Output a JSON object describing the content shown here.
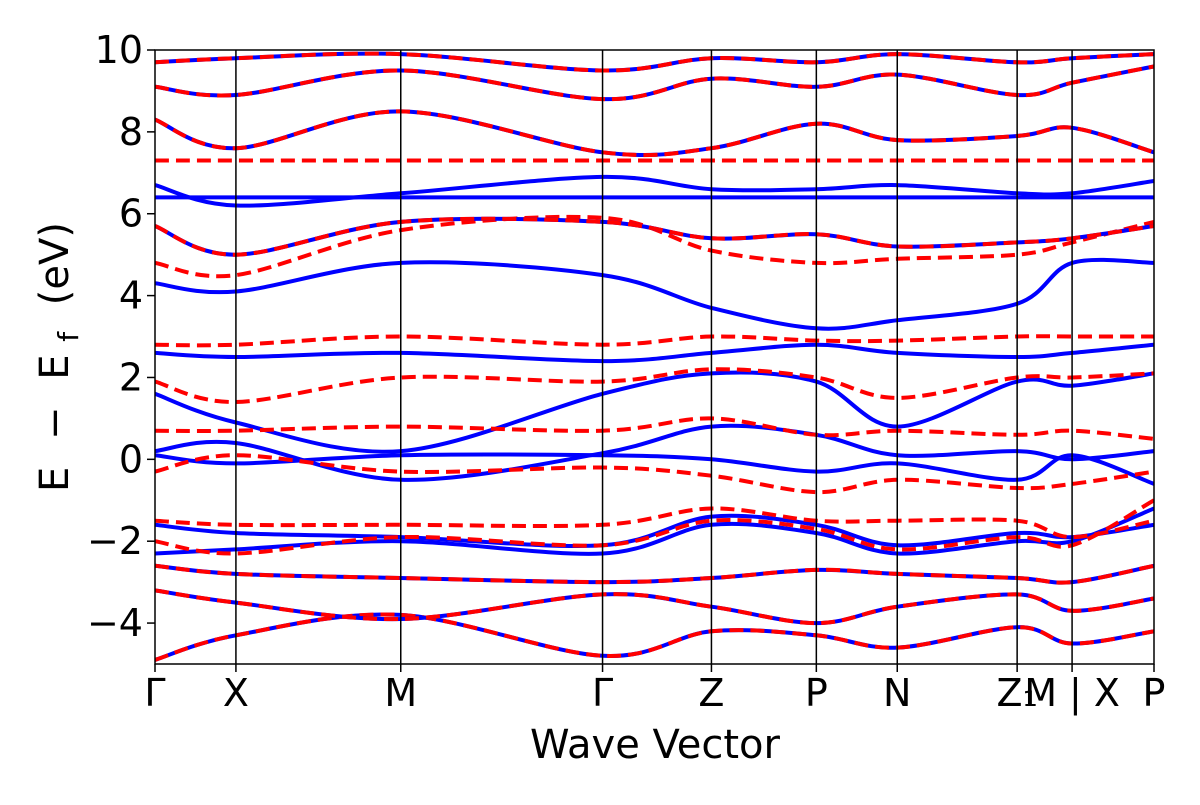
{
  "chart_data": {
    "type": "line",
    "title": "",
    "xlabel": "Wave Vector",
    "ylabel_parts": {
      "E": "E",
      "minus": "−",
      "Ef": "E",
      "sub": "f",
      "unit": "(eV)"
    },
    "ylim": [
      -5,
      10
    ],
    "y_ticks": [
      10,
      8,
      6,
      4,
      2,
      0,
      -2,
      -4
    ],
    "y_tick_labels": [
      "10",
      "8",
      "6",
      "4",
      "2",
      "0",
      "−2",
      "−4"
    ],
    "x_range": [
      0,
      1
    ],
    "high_symmetry_points": [
      {
        "label": "Γ",
        "x": 0.0
      },
      {
        "label": "X",
        "x": 0.081
      },
      {
        "label": "M",
        "x": 0.246
      },
      {
        "label": "Γ",
        "x": 0.448
      },
      {
        "label": "Z",
        "x": 0.557
      },
      {
        "label": "P",
        "x": 0.662
      },
      {
        "label": "N",
        "x": 0.743
      },
      {
        "label": "Z₁",
        "x": 0.863
      },
      {
        "label": "M | X",
        "x": 0.918
      },
      {
        "label": "P",
        "x": 1.0
      }
    ],
    "grid": false,
    "series": [
      {
        "style": "solid",
        "color": "#0000ff",
        "bands": [
          [
            [
              0.0,
              -2.3
            ],
            [
              0.081,
              -2.2
            ],
            [
              0.246,
              -2.0
            ],
            [
              0.448,
              -2.3
            ],
            [
              0.557,
              -1.6
            ],
            [
              0.662,
              -1.8
            ],
            [
              0.743,
              -2.3
            ],
            [
              0.863,
              -2.0
            ],
            [
              0.918,
              -2.0
            ],
            [
              1.0,
              -1.2
            ]
          ],
          [
            [
              0.0,
              -1.6
            ],
            [
              0.081,
              -1.8
            ],
            [
              0.246,
              -1.9
            ],
            [
              0.448,
              -2.1
            ],
            [
              0.557,
              -1.4
            ],
            [
              0.662,
              -1.6
            ],
            [
              0.743,
              -2.1
            ],
            [
              0.863,
              -1.8
            ],
            [
              0.918,
              -1.9
            ],
            [
              1.0,
              -1.6
            ]
          ],
          [
            [
              0.0,
              0.1
            ],
            [
              0.081,
              -0.1
            ],
            [
              0.246,
              0.1
            ],
            [
              0.448,
              0.1
            ],
            [
              0.557,
              0.0
            ],
            [
              0.662,
              -0.3
            ],
            [
              0.743,
              -0.1
            ],
            [
              0.863,
              -0.5
            ],
            [
              0.918,
              0.1
            ],
            [
              1.0,
              -0.6
            ]
          ],
          [
            [
              0.0,
              0.2
            ],
            [
              0.081,
              0.4
            ],
            [
              0.246,
              -0.5
            ],
            [
              0.448,
              0.15
            ],
            [
              0.557,
              0.8
            ],
            [
              0.662,
              0.6
            ],
            [
              0.743,
              0.1
            ],
            [
              0.863,
              0.2
            ],
            [
              0.918,
              0.0
            ],
            [
              1.0,
              0.2
            ]
          ],
          [
            [
              0.0,
              1.6
            ],
            [
              0.081,
              0.9
            ],
            [
              0.246,
              0.2
            ],
            [
              0.448,
              1.6
            ],
            [
              0.557,
              2.1
            ],
            [
              0.662,
              1.9
            ],
            [
              0.743,
              0.8
            ],
            [
              0.863,
              1.9
            ],
            [
              0.918,
              1.8
            ],
            [
              1.0,
              2.1
            ]
          ],
          [
            [
              0.0,
              2.6
            ],
            [
              0.081,
              2.5
            ],
            [
              0.246,
              2.6
            ],
            [
              0.448,
              2.4
            ],
            [
              0.557,
              2.6
            ],
            [
              0.662,
              2.8
            ],
            [
              0.743,
              2.6
            ],
            [
              0.863,
              2.5
            ],
            [
              0.918,
              2.6
            ],
            [
              1.0,
              2.8
            ]
          ],
          [
            [
              0.0,
              4.3
            ],
            [
              0.081,
              4.1
            ],
            [
              0.246,
              4.8
            ],
            [
              0.448,
              4.5
            ],
            [
              0.557,
              3.7
            ],
            [
              0.662,
              3.2
            ],
            [
              0.743,
              3.4
            ],
            [
              0.863,
              3.8
            ],
            [
              0.918,
              4.8
            ],
            [
              1.0,
              4.8
            ]
          ],
          [
            [
              0.0,
              6.4
            ],
            [
              0.081,
              6.4
            ],
            [
              0.246,
              6.4
            ],
            [
              0.448,
              6.4
            ],
            [
              0.557,
              6.4
            ],
            [
              0.662,
              6.4
            ],
            [
              0.743,
              6.4
            ],
            [
              0.863,
              6.4
            ],
            [
              0.918,
              6.4
            ],
            [
              1.0,
              6.4
            ]
          ],
          [
            [
              0.0,
              6.7
            ],
            [
              0.081,
              6.2
            ],
            [
              0.246,
              6.5
            ],
            [
              0.448,
              6.9
            ],
            [
              0.557,
              6.6
            ],
            [
              0.662,
              6.6
            ],
            [
              0.743,
              6.7
            ],
            [
              0.863,
              6.5
            ],
            [
              0.918,
              6.5
            ],
            [
              1.0,
              6.8
            ]
          ]
        ]
      },
      {
        "style": "dashed",
        "color": "#ff0000",
        "bands": [
          [
            [
              0.0,
              -2.0
            ],
            [
              0.081,
              -2.3
            ],
            [
              0.246,
              -1.9
            ],
            [
              0.448,
              -2.1
            ],
            [
              0.557,
              -1.5
            ],
            [
              0.662,
              -1.7
            ],
            [
              0.743,
              -2.2
            ],
            [
              0.863,
              -1.9
            ],
            [
              0.918,
              -2.1
            ],
            [
              1.0,
              -1.0
            ]
          ],
          [
            [
              0.0,
              -1.5
            ],
            [
              0.081,
              -1.6
            ],
            [
              0.246,
              -1.6
            ],
            [
              0.448,
              -1.6
            ],
            [
              0.557,
              -1.2
            ],
            [
              0.662,
              -1.5
            ],
            [
              0.743,
              -1.5
            ],
            [
              0.863,
              -1.5
            ],
            [
              0.918,
              -1.9
            ],
            [
              1.0,
              -1.5
            ]
          ],
          [
            [
              0.0,
              0.7
            ],
            [
              0.081,
              0.7
            ],
            [
              0.246,
              0.8
            ],
            [
              0.448,
              0.7
            ],
            [
              0.557,
              1.0
            ],
            [
              0.662,
              0.6
            ],
            [
              0.743,
              0.7
            ],
            [
              0.863,
              0.6
            ],
            [
              0.918,
              0.7
            ],
            [
              1.0,
              0.5
            ]
          ],
          [
            [
              0.0,
              1.9
            ],
            [
              0.081,
              1.4
            ],
            [
              0.246,
              2.0
            ],
            [
              0.448,
              1.9
            ],
            [
              0.557,
              2.2
            ],
            [
              0.662,
              2.0
            ],
            [
              0.743,
              1.5
            ],
            [
              0.863,
              2.0
            ],
            [
              0.918,
              2.0
            ],
            [
              1.0,
              2.1
            ]
          ],
          [
            [
              0.0,
              2.8
            ],
            [
              0.081,
              2.8
            ],
            [
              0.246,
              3.0
            ],
            [
              0.448,
              2.8
            ],
            [
              0.557,
              3.0
            ],
            [
              0.662,
              2.9
            ],
            [
              0.743,
              2.9
            ],
            [
              0.863,
              3.0
            ],
            [
              0.918,
              3.0
            ],
            [
              1.0,
              3.0
            ]
          ],
          [
            [
              0.0,
              7.3
            ],
            [
              0.081,
              7.3
            ],
            [
              0.246,
              7.3
            ],
            [
              0.448,
              7.3
            ],
            [
              0.557,
              7.3
            ],
            [
              0.662,
              7.3
            ],
            [
              0.743,
              7.3
            ],
            [
              0.863,
              7.3
            ],
            [
              0.918,
              7.3
            ],
            [
              1.0,
              7.3
            ]
          ],
          [
            [
              0.0,
              4.8
            ],
            [
              0.081,
              4.5
            ],
            [
              0.246,
              5.6
            ],
            [
              0.448,
              5.9
            ],
            [
              0.557,
              5.1
            ],
            [
              0.662,
              4.8
            ],
            [
              0.743,
              4.9
            ],
            [
              0.863,
              5.0
            ],
            [
              0.918,
              5.3
            ],
            [
              1.0,
              5.8
            ]
          ],
          [
            [
              0.0,
              -0.3
            ],
            [
              0.081,
              0.1
            ],
            [
              0.246,
              -0.3
            ],
            [
              0.448,
              -0.2
            ],
            [
              0.557,
              -0.4
            ],
            [
              0.662,
              -0.8
            ],
            [
              0.743,
              -0.5
            ],
            [
              0.863,
              -0.7
            ],
            [
              0.918,
              -0.6
            ],
            [
              1.0,
              -0.3
            ]
          ]
        ]
      },
      {
        "style": "dashed-overlay",
        "color": "#ff0000",
        "under_color": "#0000ff",
        "bands": [
          [
            [
              0.0,
              -4.9
            ],
            [
              0.081,
              -4.3
            ],
            [
              0.246,
              -3.8
            ],
            [
              0.448,
              -4.8
            ],
            [
              0.557,
              -4.2
            ],
            [
              0.662,
              -4.3
            ],
            [
              0.743,
              -4.6
            ],
            [
              0.863,
              -4.1
            ],
            [
              0.918,
              -4.5
            ],
            [
              1.0,
              -4.2
            ]
          ],
          [
            [
              0.0,
              -3.2
            ],
            [
              0.081,
              -3.5
            ],
            [
              0.246,
              -3.9
            ],
            [
              0.448,
              -3.3
            ],
            [
              0.557,
              -3.6
            ],
            [
              0.662,
              -4.0
            ],
            [
              0.743,
              -3.6
            ],
            [
              0.863,
              -3.3
            ],
            [
              0.918,
              -3.7
            ],
            [
              1.0,
              -3.4
            ]
          ],
          [
            [
              0.0,
              -2.6
            ],
            [
              0.081,
              -2.8
            ],
            [
              0.246,
              -2.9
            ],
            [
              0.448,
              -3.0
            ],
            [
              0.557,
              -2.9
            ],
            [
              0.662,
              -2.7
            ],
            [
              0.743,
              -2.8
            ],
            [
              0.863,
              -2.9
            ],
            [
              0.918,
              -3.0
            ],
            [
              1.0,
              -2.6
            ]
          ],
          [
            [
              0.0,
              5.7
            ],
            [
              0.081,
              5.0
            ],
            [
              0.246,
              5.8
            ],
            [
              0.448,
              5.8
            ],
            [
              0.557,
              5.4
            ],
            [
              0.662,
              5.5
            ],
            [
              0.743,
              5.2
            ],
            [
              0.863,
              5.3
            ],
            [
              0.918,
              5.4
            ],
            [
              1.0,
              5.7
            ]
          ],
          [
            [
              0.0,
              8.3
            ],
            [
              0.081,
              7.6
            ],
            [
              0.246,
              8.5
            ],
            [
              0.448,
              7.5
            ],
            [
              0.557,
              7.6
            ],
            [
              0.662,
              8.2
            ],
            [
              0.743,
              7.8
            ],
            [
              0.863,
              7.9
            ],
            [
              0.918,
              8.1
            ],
            [
              1.0,
              7.5
            ]
          ],
          [
            [
              0.0,
              9.1
            ],
            [
              0.081,
              8.9
            ],
            [
              0.246,
              9.5
            ],
            [
              0.448,
              8.8
            ],
            [
              0.557,
              9.3
            ],
            [
              0.662,
              9.1
            ],
            [
              0.743,
              9.4
            ],
            [
              0.863,
              8.9
            ],
            [
              0.918,
              9.2
            ],
            [
              1.0,
              9.6
            ]
          ],
          [
            [
              0.0,
              9.7
            ],
            [
              0.081,
              9.8
            ],
            [
              0.246,
              9.9
            ],
            [
              0.448,
              9.5
            ],
            [
              0.557,
              9.8
            ],
            [
              0.662,
              9.7
            ],
            [
              0.743,
              9.9
            ],
            [
              0.863,
              9.7
            ],
            [
              0.918,
              9.8
            ],
            [
              1.0,
              9.9
            ]
          ]
        ]
      }
    ]
  }
}
